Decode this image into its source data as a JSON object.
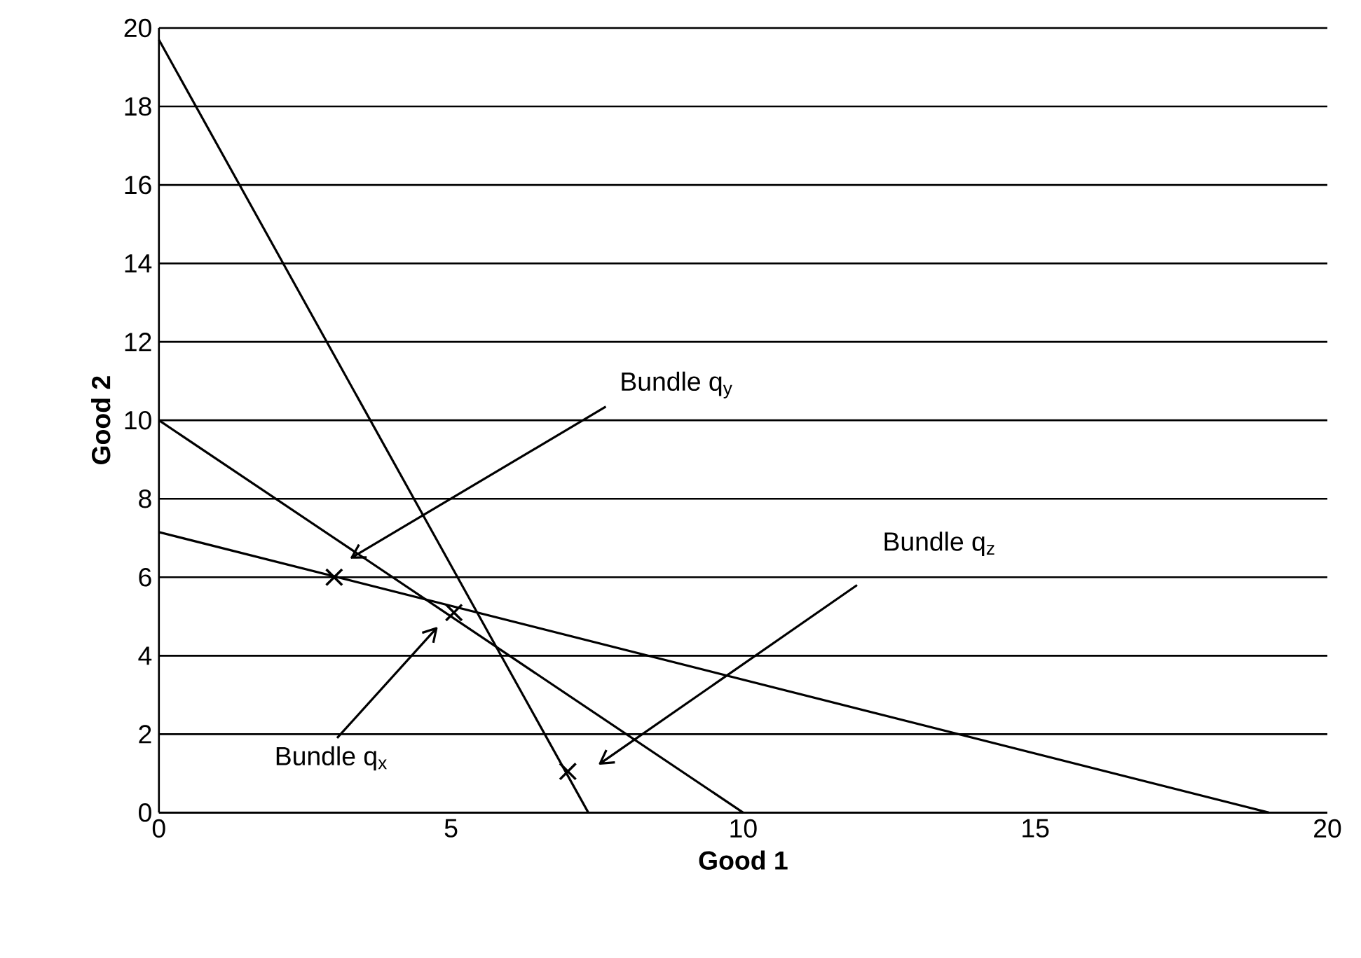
{
  "chart_data": {
    "type": "line",
    "xlabel": "Good 1",
    "ylabel": "Good 2",
    "xlim": [
      0,
      20
    ],
    "ylim": [
      0,
      20
    ],
    "xticks": [
      0,
      5,
      10,
      15,
      20
    ],
    "yticks": [
      0,
      2,
      4,
      6,
      8,
      10,
      12,
      14,
      16,
      18,
      20
    ],
    "grid": "y",
    "series": [
      {
        "color": "#000000",
        "marker": "none",
        "x": [
          0,
          7.35
        ],
        "values": [
          19.7,
          0
        ]
      },
      {
        "color": "#000000",
        "marker": "none",
        "x": [
          0,
          10
        ],
        "values": [
          10,
          0
        ]
      },
      {
        "color": "#000000",
        "marker": "none",
        "x": [
          0,
          19
        ],
        "values": [
          7.15,
          0
        ]
      },
      {
        "type": "scatter",
        "color": "#000000",
        "marker": "cross",
        "x": [
          3,
          5.05,
          7
        ],
        "values": [
          6,
          5.1,
          1.05
        ]
      }
    ],
    "annotations": [
      "Bundle  q$_{y}$",
      "Bundle q$_{z}$",
      "Bundle q$_{x}$"
    ]
  }
}
